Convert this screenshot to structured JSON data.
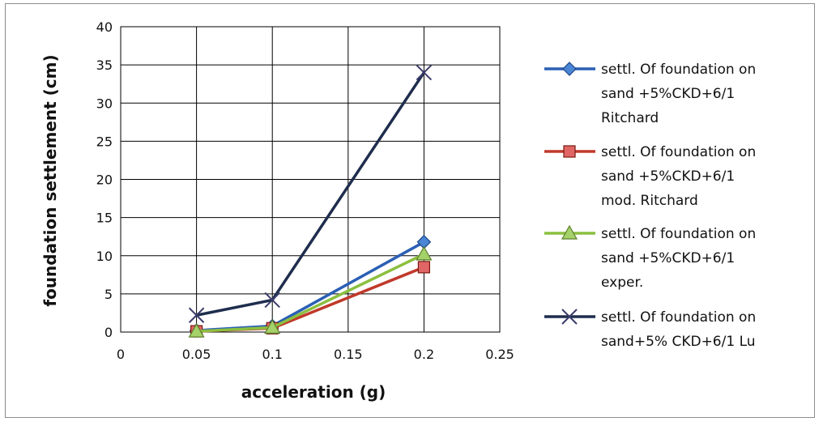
{
  "chart_data": {
    "type": "line",
    "title": "",
    "xlabel": "acceleration (g)",
    "ylabel": "foundation settlement (cm)",
    "xlim": [
      0,
      0.25
    ],
    "ylim": [
      0,
      40
    ],
    "xticks": [
      "0",
      "0.05",
      "0.1",
      "0.15",
      "0.2",
      "0.25"
    ],
    "yticks": [
      "0",
      "5",
      "10",
      "15",
      "20",
      "25",
      "30",
      "35",
      "40"
    ],
    "grid": true,
    "legend_position": "right",
    "x": [
      0.05,
      0.1,
      0.2
    ],
    "series": [
      {
        "name": "settl. Of foundation on sand +5%CKD+6/1 Ritchard",
        "legend_lines": [
          "settl. Of foundation on",
          "sand +5%CKD+6/1",
          "Ritchard"
        ],
        "values": [
          0.2,
          0.8,
          11.8
        ],
        "color": "#2a5fb4",
        "marker": "diamond-icon"
      },
      {
        "name": "settl. Of foundation on sand +5%CKD+6/1 mod. Ritchard",
        "legend_lines": [
          "settl. Of foundation on",
          "sand +5%CKD+6/1",
          "mod. Ritchard"
        ],
        "values": [
          0.1,
          0.5,
          8.5
        ],
        "color": "#c0392b",
        "marker": "square-icon"
      },
      {
        "name": "settl. Of foundation on sand +5%CKD+6/1 exper.",
        "legend_lines": [
          "settl. Of foundation on",
          "sand +5%CKD+6/1",
          "exper."
        ],
        "values": [
          0.1,
          0.6,
          10.2
        ],
        "color": "#8bbf3f",
        "marker": "triangle-icon"
      },
      {
        "name": "settl. Of foundation on sand+5% CKD+6/1  Lu",
        "legend_lines": [
          "settl. Of foundation on",
          "sand+5% CKD+6/1  Lu"
        ],
        "values": [
          2.2,
          4.2,
          34.0
        ],
        "color": "#1f2d4d",
        "marker": "x-icon"
      }
    ]
  }
}
